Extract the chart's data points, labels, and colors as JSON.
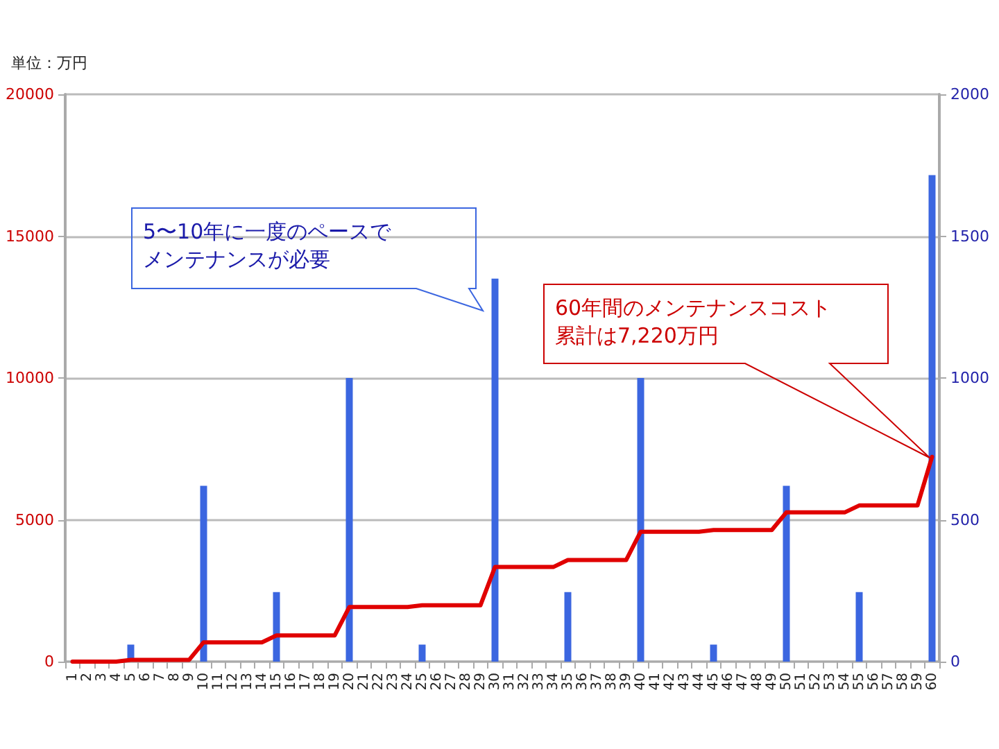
{
  "chart_data": {
    "type": "bar",
    "categories": [
      "1",
      "2",
      "3",
      "4",
      "5",
      "6",
      "7",
      "8",
      "9",
      "10",
      "11",
      "12",
      "13",
      "14",
      "15",
      "16",
      "17",
      "18",
      "19",
      "20",
      "21",
      "22",
      "23",
      "24",
      "25",
      "26",
      "27",
      "28",
      "29",
      "30",
      "31",
      "32",
      "33",
      "34",
      "35",
      "36",
      "37",
      "38",
      "39",
      "40",
      "41",
      "42",
      "43",
      "44",
      "45",
      "46",
      "47",
      "48",
      "49",
      "50",
      "51",
      "52",
      "53",
      "54",
      "55",
      "56",
      "57",
      "58",
      "59",
      "60"
    ],
    "series": [
      {
        "axis": "y2",
        "color": "#3b66e0",
        "values": [
          0,
          0,
          0,
          0,
          60,
          0,
          0,
          0,
          0,
          620,
          0,
          0,
          0,
          0,
          245,
          0,
          0,
          0,
          0,
          1000,
          0,
          0,
          0,
          0,
          60,
          0,
          0,
          0,
          0,
          1350,
          0,
          0,
          0,
          0,
          245,
          0,
          0,
          0,
          0,
          1000,
          0,
          0,
          0,
          0,
          60,
          0,
          0,
          0,
          0,
          620,
          0,
          0,
          0,
          0,
          245,
          0,
          0,
          0,
          0,
          1715
        ]
      },
      {
        "type": "line",
        "color": "#e00000",
        "values": [
          0,
          0,
          0,
          0,
          60,
          60,
          60,
          60,
          60,
          680,
          680,
          680,
          680,
          680,
          925,
          925,
          925,
          925,
          925,
          1925,
          1925,
          1925,
          1925,
          1925,
          1985,
          1985,
          1985,
          1985,
          1985,
          3335,
          3335,
          3335,
          3335,
          3335,
          3580,
          3580,
          3580,
          3580,
          3580,
          4580,
          4580,
          4580,
          4580,
          4580,
          4640,
          4640,
          4640,
          4640,
          4640,
          5260,
          5260,
          5260,
          5260,
          5260,
          5505,
          5505,
          5505,
          5505,
          5505,
          7220
        ]
      }
    ],
    "ylim": [
      0,
      20000
    ],
    "yticks": [
      0,
      5000,
      10000,
      15000,
      20000
    ],
    "y2lim": [
      0,
      2000
    ],
    "y2ticks": [
      0,
      500,
      1000,
      1500,
      2000
    ],
    "grid": "y",
    "marker": "none",
    "line_style": "solid",
    "annotations": [
      "単位：万円",
      "5〜10年に一度のペースでメンテナンスが必要",
      "60年間のメンテナンスコスト累計は7,220万円"
    ]
  }
}
